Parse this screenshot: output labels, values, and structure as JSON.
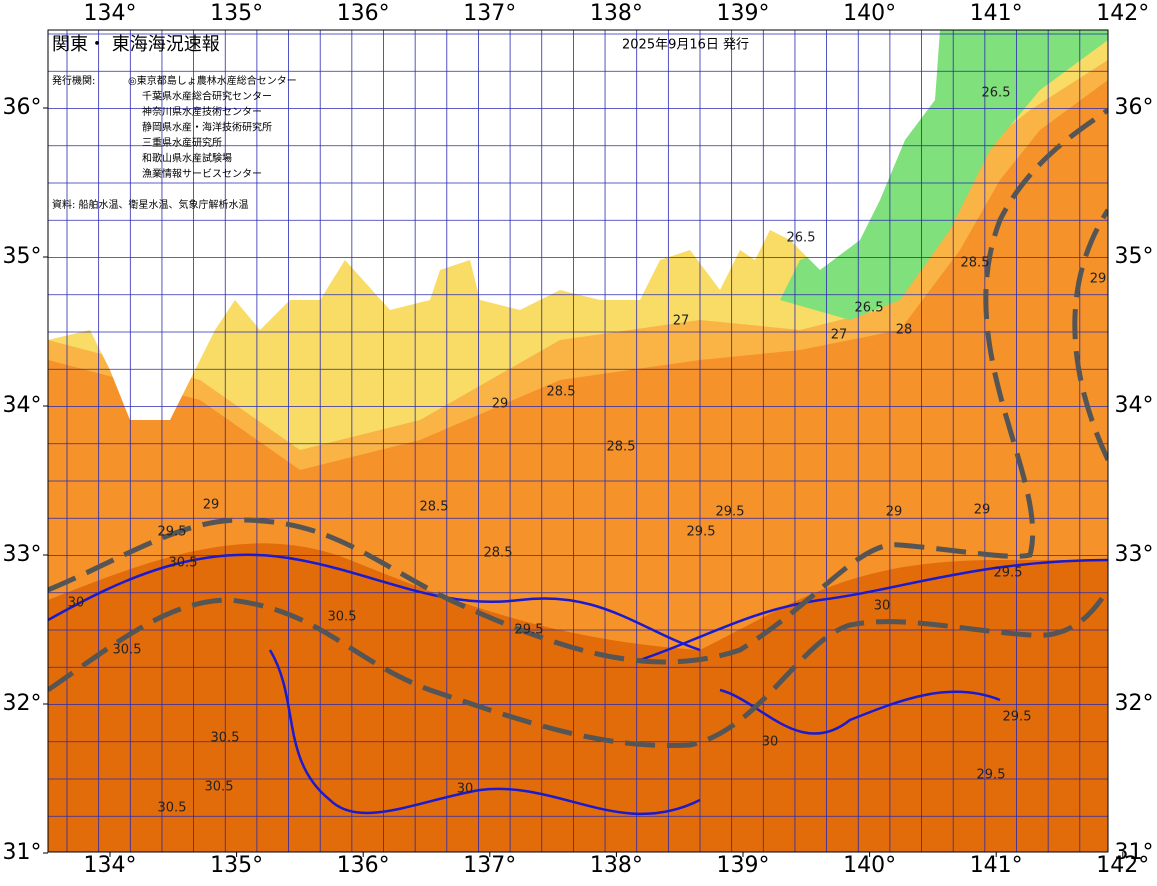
{
  "header": {
    "title": "関東・ 東海海況速報",
    "issued": "2025年9月16日 発行"
  },
  "agencies": {
    "label": "発行機関:",
    "items": [
      "◎東京都島しょ農林水産総合センター",
      "千葉県水産総合研究センター",
      "神奈川県水産技術センター",
      "静岡県水産・海洋技術研究所",
      "三重県水産研究所",
      "和歌山県水産試験場",
      "漁業情報サービスセンター"
    ]
  },
  "source": "資料: 船舶水温、衛星水温、気象庁解析水温",
  "lon_ticks": [
    {
      "value": 134,
      "label": "134°"
    },
    {
      "value": 135,
      "label": "135°"
    },
    {
      "value": 136,
      "label": "136°"
    },
    {
      "value": 137,
      "label": "137°"
    },
    {
      "value": 138,
      "label": "138°"
    },
    {
      "value": 139,
      "label": "139°"
    },
    {
      "value": 140,
      "label": "140°"
    },
    {
      "value": 141,
      "label": "141°"
    },
    {
      "value": 142,
      "label": "142°"
    }
  ],
  "lat_ticks": [
    {
      "value": 31,
      "label": "31°"
    },
    {
      "value": 32,
      "label": "32°"
    },
    {
      "value": 33,
      "label": "33°"
    },
    {
      "value": 34,
      "label": "34°"
    },
    {
      "value": 35,
      "label": "35°"
    },
    {
      "value": 36,
      "label": "36°"
    }
  ],
  "contour_labels": [
    "26.5",
    "26.5",
    "26.5",
    "27",
    "27",
    "28",
    "28.5",
    "29",
    "28.5",
    "29",
    "28.5",
    "28.5",
    "29",
    "29.5",
    "30.5",
    "30",
    "30.5",
    "28.5",
    "29.5",
    "29.5",
    "29.5",
    "30.5",
    "29.5",
    "30",
    "30.5",
    "30.5",
    "30.5",
    "29.5",
    "29.5",
    "29",
    "29",
    "30",
    "30"
  ]
}
